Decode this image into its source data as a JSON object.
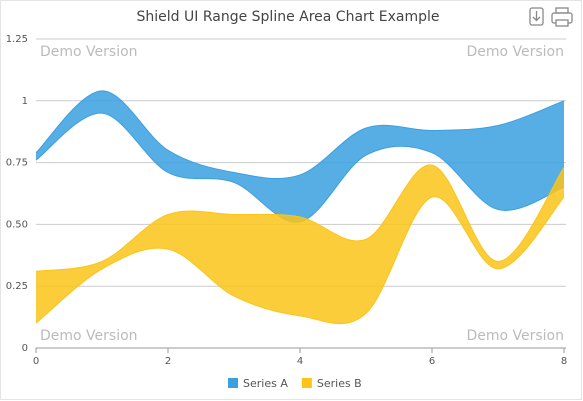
{
  "chart_data": {
    "type": "rangesplinearea",
    "title": "Shield UI Range Spline Area Chart Example",
    "watermark": "Demo Version",
    "x": [
      0,
      1,
      2,
      3,
      4,
      5,
      6,
      7,
      8
    ],
    "series": [
      {
        "name": "Series A",
        "color": "#3aa0e0",
        "low": [
          0.76,
          0.95,
          0.71,
          0.67,
          0.51,
          0.78,
          0.79,
          0.56,
          0.65
        ],
        "high": [
          0.79,
          1.04,
          0.8,
          0.71,
          0.7,
          0.89,
          0.88,
          0.9,
          1.0
        ]
      },
      {
        "name": "Series B",
        "color": "#fcc417",
        "low": [
          0.1,
          0.32,
          0.4,
          0.21,
          0.13,
          0.14,
          0.61,
          0.32,
          0.61
        ],
        "high": [
          0.31,
          0.35,
          0.54,
          0.54,
          0.53,
          0.44,
          0.74,
          0.35,
          0.73
        ]
      }
    ],
    "xlim": [
      0,
      8
    ],
    "xticks": [
      0,
      2,
      4,
      6,
      8
    ],
    "ylim": [
      0,
      1.25
    ],
    "yticks": [
      0,
      0.25,
      {
        "value": 0.5,
        "label": "0.50"
      },
      0.75,
      1,
      1.25
    ],
    "grid": true
  }
}
